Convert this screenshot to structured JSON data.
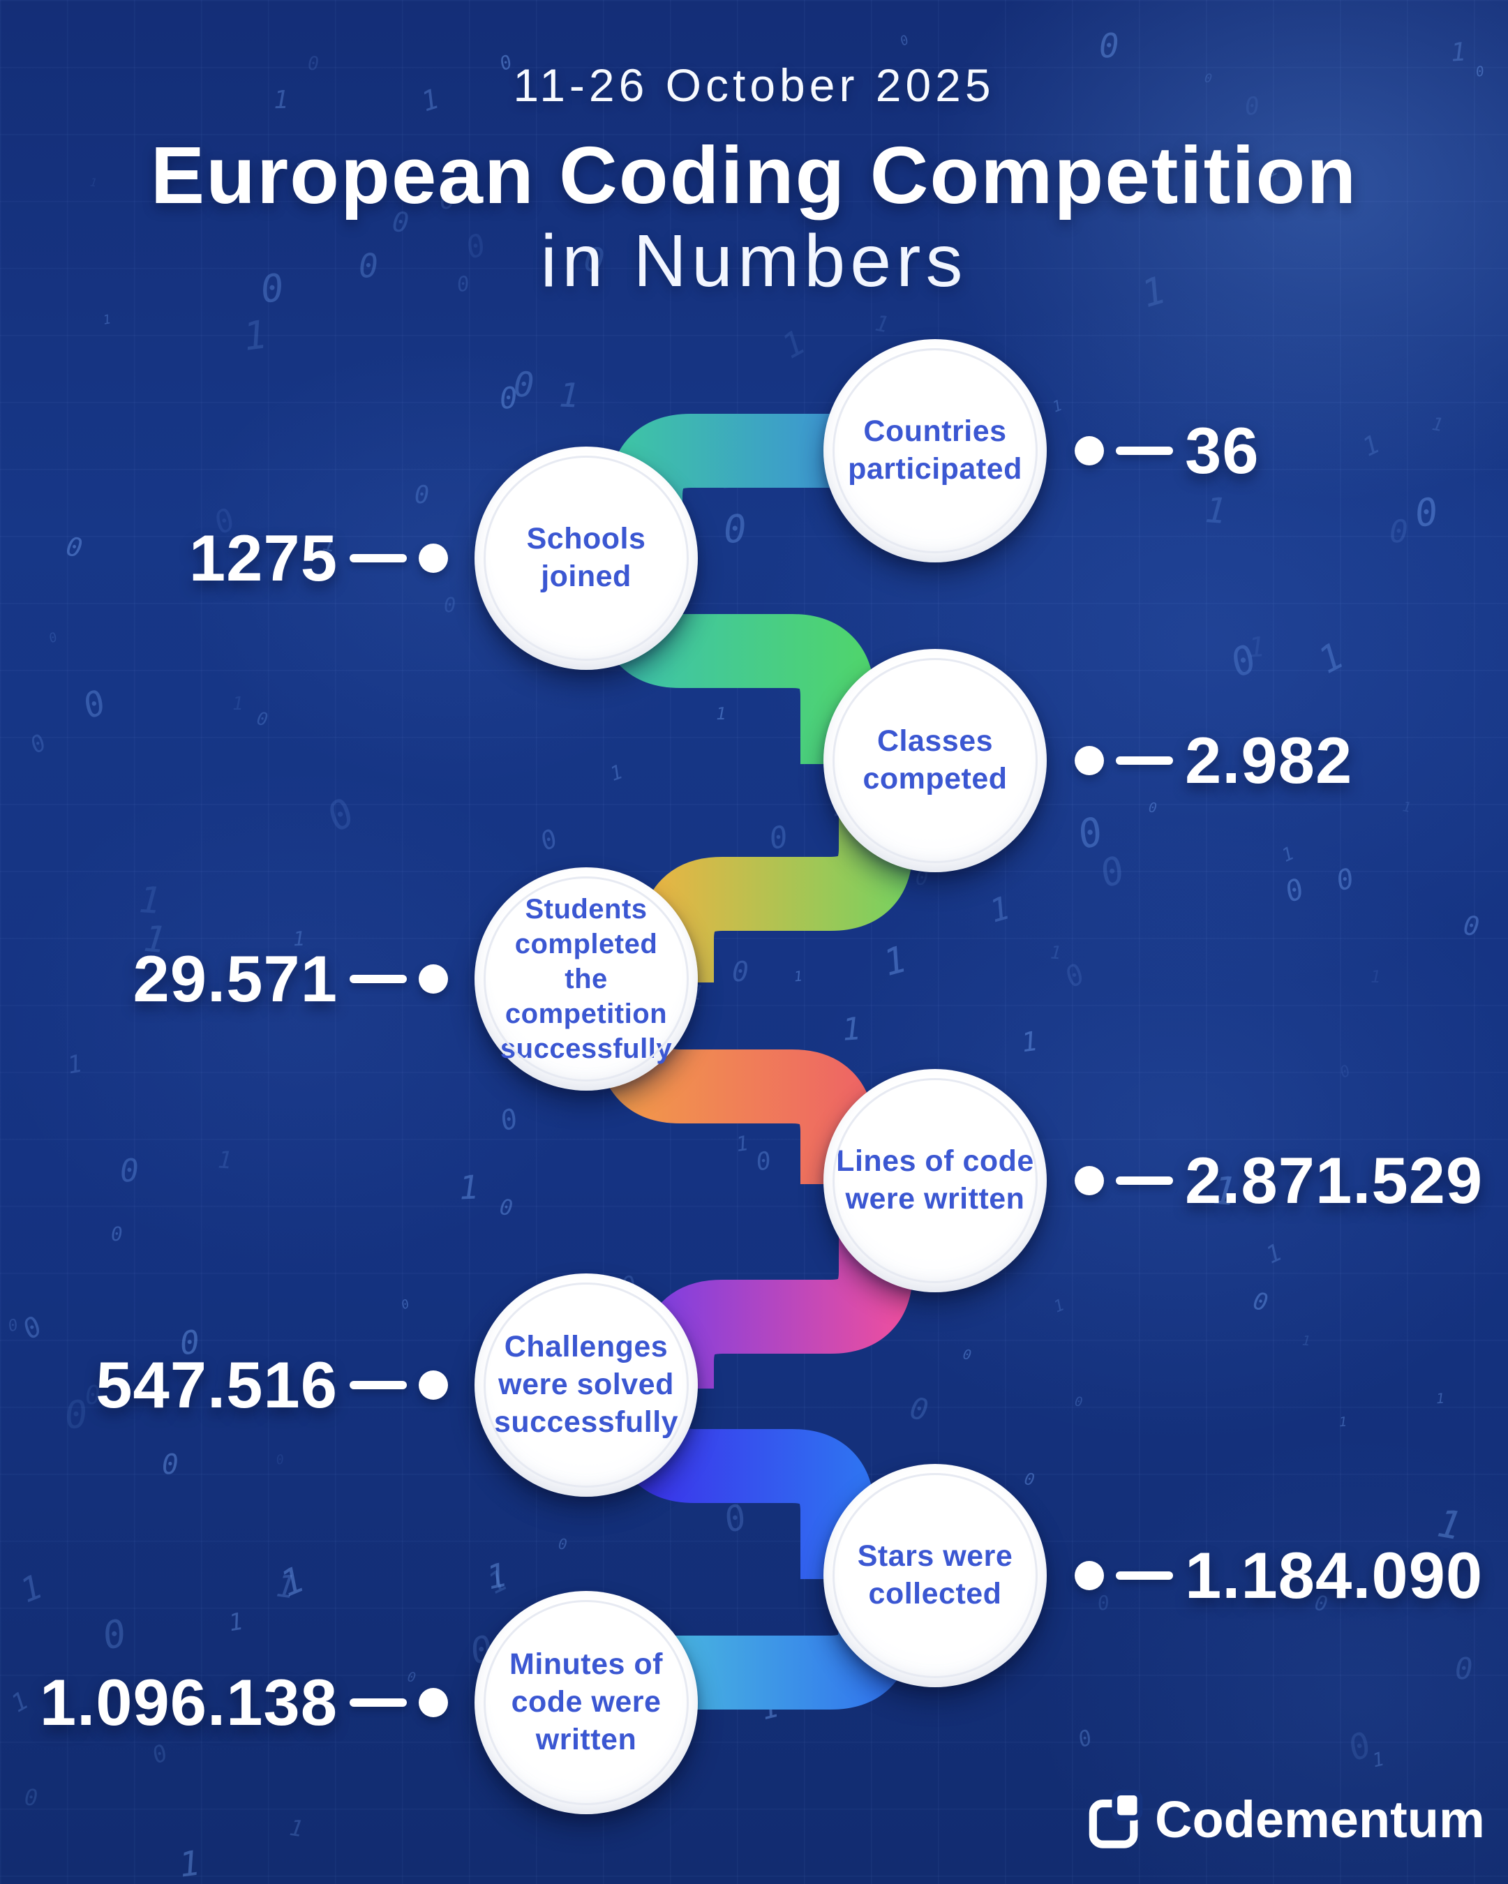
{
  "header": {
    "date": "11-26 October 2025",
    "title": "European Coding Competition",
    "subtitle": "in Numbers"
  },
  "stats": [
    {
      "label": "Countries\nparticipated",
      "value": "36",
      "side": "right"
    },
    {
      "label": "Schools\njoined",
      "value": "1275",
      "side": "left"
    },
    {
      "label": "Classes\ncompeted",
      "value": "2.982",
      "side": "right"
    },
    {
      "label": "Students\ncompleted\nthe competition\nsuccessfully",
      "value": "29.571",
      "side": "left"
    },
    {
      "label": "Lines of code\nwere written",
      "value": "2.871.529",
      "side": "right"
    },
    {
      "label": "Challenges\nwere solved\nsuccessfully",
      "value": "547.516",
      "side": "left"
    },
    {
      "label": "Stars were\ncollected",
      "value": "1.184.090",
      "side": "right"
    },
    {
      "label": "Minutes of\ncode were\nwritten",
      "value": "1.096.138",
      "side": "left"
    }
  ],
  "brand": {
    "name": "Codementum"
  },
  "colors": {
    "background": "#153382",
    "label_blue": "#3b57d2",
    "value_white": "#ffffff",
    "ribbons": [
      {
        "name": "schools-to-countries",
        "from": "#3EC3A6",
        "to": "#3C7EE8"
      },
      {
        "name": "schools-to-classes",
        "from": "#3DC2AE",
        "to": "#4FD46E"
      },
      {
        "name": "students-to-classes",
        "from": "#EBB443",
        "to": "#77D160"
      },
      {
        "name": "students-to-lines",
        "from": "#F29B49",
        "to": "#EE6664"
      },
      {
        "name": "challenges-to-lines",
        "from": "#7B3EE2",
        "to": "#EF4F9E"
      },
      {
        "name": "challenges-to-stars",
        "from": "#3D2BEA",
        "to": "#2F72F1"
      },
      {
        "name": "minutes-to-stars",
        "from": "#4BBBDE",
        "to": "#2F6FF0"
      }
    ]
  }
}
